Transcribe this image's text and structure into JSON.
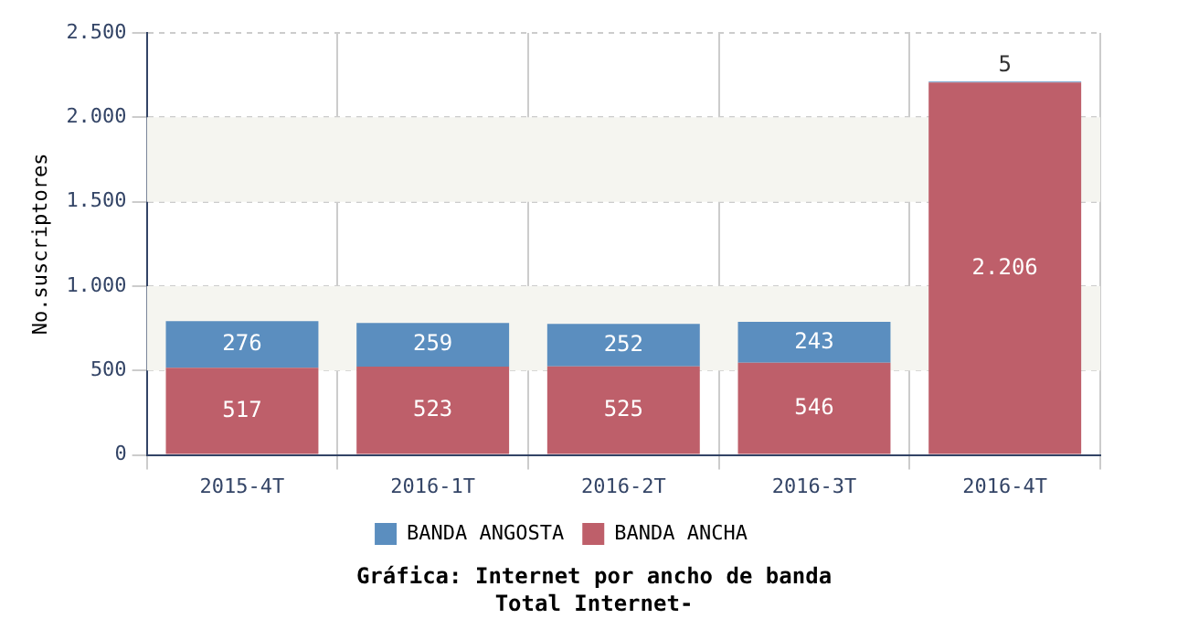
{
  "chart_data": {
    "type": "bar",
    "title": "Gráfica: Internet por ancho de banda",
    "subtitle": "Total Internet-",
    "ylabel": "No.suscriptores",
    "categories": [
      "2015-4T",
      "2016-1T",
      "2016-2T",
      "2016-3T",
      "2016-4T"
    ],
    "series": [
      {
        "name": "BANDA ANCHA",
        "color": "#be5f6a",
        "values": [
          517,
          523,
          525,
          546,
          2206
        ],
        "value_labels": [
          "517",
          "523",
          "525",
          "546",
          "2.206"
        ]
      },
      {
        "name": "BANDA ANGOSTA",
        "color": "#5b8ebf",
        "values": [
          276,
          259,
          252,
          243,
          5
        ],
        "value_labels": [
          "276",
          "259",
          "252",
          "243",
          "5"
        ]
      }
    ],
    "stacked": true,
    "grid": true,
    "legend": "bottom",
    "ylim": [
      0,
      2500
    ],
    "yticks": [
      0,
      500,
      {
        "value": 1000,
        "label": "1.000"
      },
      {
        "value": 1500,
        "label": "1.500"
      },
      {
        "value": 2000,
        "label": "2.000"
      },
      {
        "value": 2500,
        "label": "2.500"
      }
    ],
    "bands": [
      {
        "axis": "y",
        "from": 500,
        "to": 1000,
        "color": "#f5f5f0"
      },
      {
        "axis": "y",
        "from": 1500,
        "to": 2000,
        "color": "#f5f5f0"
      }
    ]
  }
}
